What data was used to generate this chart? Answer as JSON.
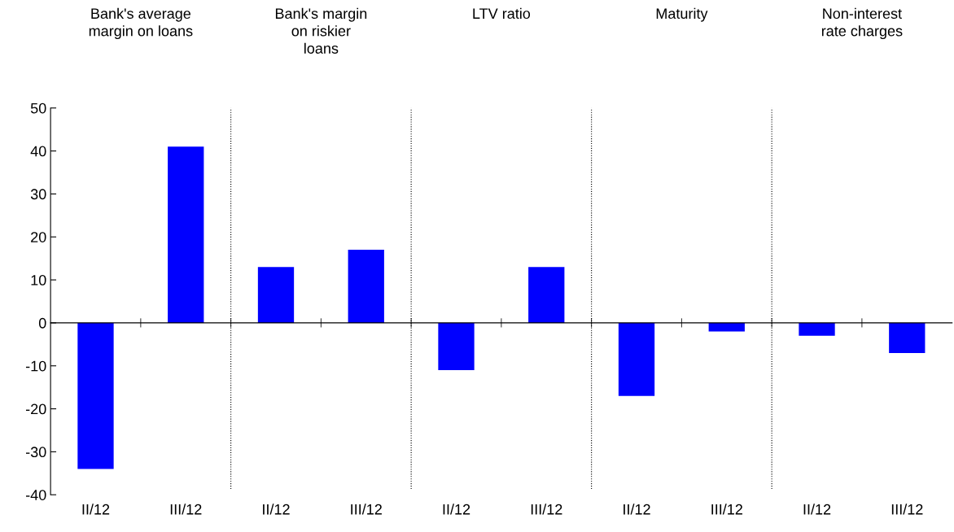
{
  "chart_data": {
    "type": "bar",
    "categories": [
      "II/12",
      "III/12",
      "II/12",
      "III/12",
      "II/12",
      "III/12",
      "II/12",
      "III/12",
      "II/12",
      "III/12"
    ],
    "values": [
      -34,
      41,
      13,
      17,
      -11,
      13,
      -17,
      -2,
      -3,
      -7
    ],
    "color": "#0000ff",
    "ylim": [
      -40,
      50
    ],
    "yticks": [
      -40,
      -30,
      -20,
      -10,
      0,
      10,
      20,
      30,
      40,
      50
    ],
    "grid": false,
    "legend": false,
    "annotations": [
      "Bank's average\nmargin on loans",
      "Bank's margin\non riskier\nloans",
      "LTV ratio",
      "Maturity",
      "Non-interest\nrate charges"
    ]
  }
}
